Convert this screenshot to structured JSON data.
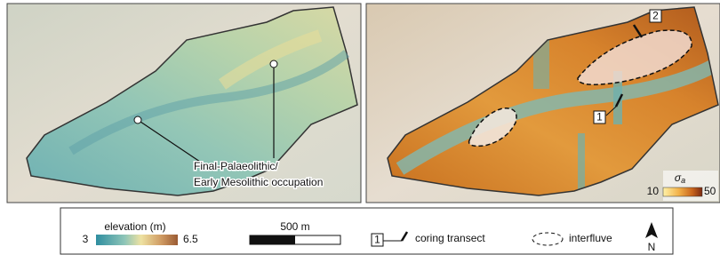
{
  "left_panel": {
    "annotation": [
      "Final-Palaeolithic/",
      "Early Mesolithic occupation"
    ]
  },
  "right_panel": {
    "transect_labels": [
      "2",
      "1"
    ],
    "colorbar": {
      "symbol": "σ",
      "subscript": "a",
      "min": 10,
      "max": 50
    }
  },
  "legend": {
    "elevation": {
      "title": "elevation (m)",
      "min": 3,
      "max": 6.5
    },
    "scale_bar": "500 m",
    "transect_key": {
      "box": "1",
      "label": "coring transect"
    },
    "interfluve": "interfluve",
    "north": "N"
  }
}
